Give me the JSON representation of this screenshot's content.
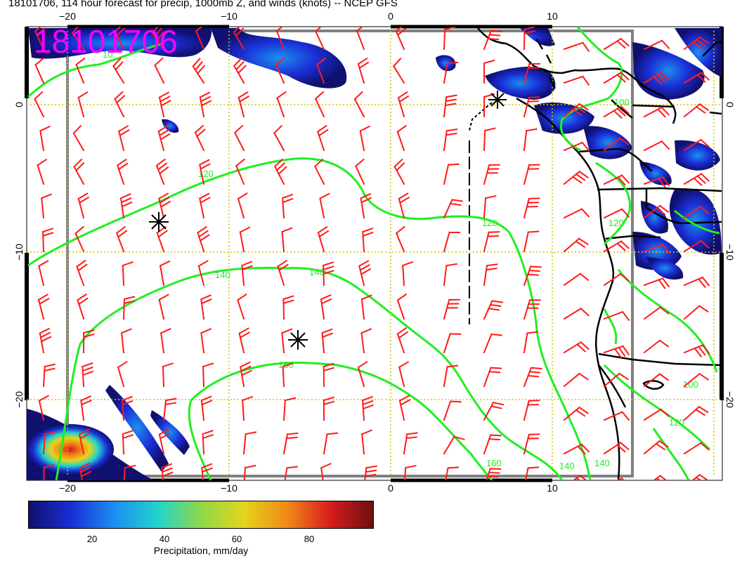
{
  "title": "18101706, 114 hour forecast for precip, 1000mb Z, and winds (knots) -- NCEP GFS",
  "datestamp": "18101706",
  "axes": {
    "top_lon_labels": [
      "−20",
      "−10",
      "0",
      "10"
    ],
    "bottom_lon_labels": [
      "−20",
      "−10",
      "0",
      "10"
    ],
    "left_lat_labels": [
      "0",
      "−10",
      "−20"
    ],
    "right_lat_labels": [
      "0",
      "−10",
      "−20"
    ]
  },
  "contours": {
    "color": "#22ee22",
    "labels": [
      "10",
      "120",
      "120",
      "140",
      "140",
      "160",
      "160",
      "140",
      "140",
      "120",
      "100",
      "120",
      "100"
    ]
  },
  "colorbar": {
    "ticks": [
      "20",
      "40",
      "60",
      "80"
    ],
    "label": "Precipitation, mm/day",
    "colors": [
      "#10106e",
      "#1a2fd6",
      "#1c8ff0",
      "#22d4cc",
      "#8ed848",
      "#e4d41c",
      "#f08a18",
      "#d81c1c",
      "#6e0f10"
    ]
  },
  "colors": {
    "wind_barb": "#ff1a1a",
    "coastline": "#000000",
    "grid": "#d6c400",
    "datestamp": "#ff00ff"
  },
  "icons": [
    "low-pressure-asterisk-icon",
    "wind-barb-icon"
  ]
}
